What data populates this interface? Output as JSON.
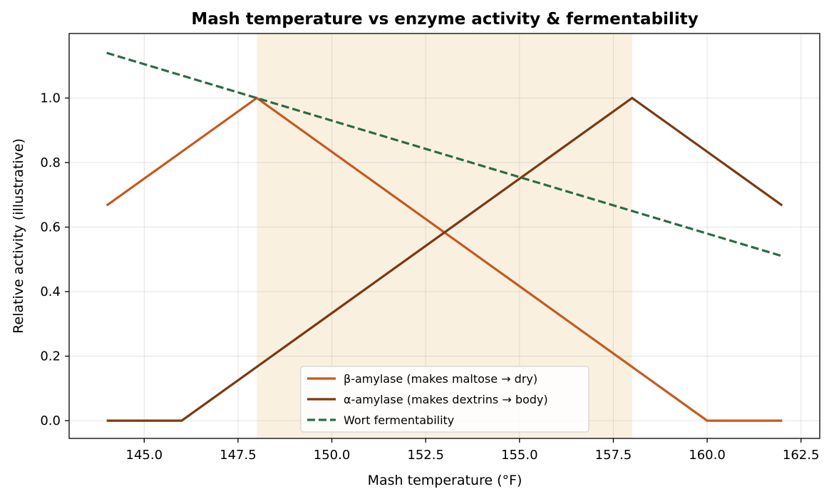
{
  "chart_data": {
    "type": "line",
    "title": "Mash temperature vs enzyme activity & fermentability",
    "xlabel": "Mash temperature (°F)",
    "ylabel": "Relative activity (illustrative)",
    "xlim": [
      143.0,
      163.0
    ],
    "ylim": [
      -0.055,
      1.2
    ],
    "xticks": [
      145.0,
      147.5,
      150.0,
      152.5,
      155.0,
      157.5,
      160.0,
      162.5
    ],
    "xtick_labels": [
      "145.0",
      "147.5",
      "150.0",
      "152.5",
      "155.0",
      "157.5",
      "160.0",
      "162.5"
    ],
    "yticks": [
      0.0,
      0.2,
      0.4,
      0.6,
      0.8,
      1.0
    ],
    "ytick_labels": [
      "0.0",
      "0.2",
      "0.4",
      "0.6",
      "0.8",
      "1.0"
    ],
    "grid": true,
    "legend_position": "bottom-center",
    "shaded_band": {
      "x0": 148,
      "x1": 158,
      "color": "#f5e6cc"
    },
    "series": [
      {
        "name": "β-amylase (makes maltose → dry)",
        "color": "#c55a1e",
        "dash": false,
        "x": [
          144,
          148,
          160,
          162
        ],
        "y": [
          0.667,
          1.0,
          0.0,
          0.0
        ]
      },
      {
        "name": "α-amylase (makes dextrins → body)",
        "color": "#7a3a12",
        "dash": false,
        "x": [
          144,
          146,
          158,
          162
        ],
        "y": [
          0.0,
          0.0,
          1.0,
          0.667
        ]
      },
      {
        "name": "Wort fermentability",
        "color": "#2d6a46",
        "dash": true,
        "x": [
          144,
          162
        ],
        "y": [
          1.14,
          0.51
        ]
      }
    ]
  }
}
